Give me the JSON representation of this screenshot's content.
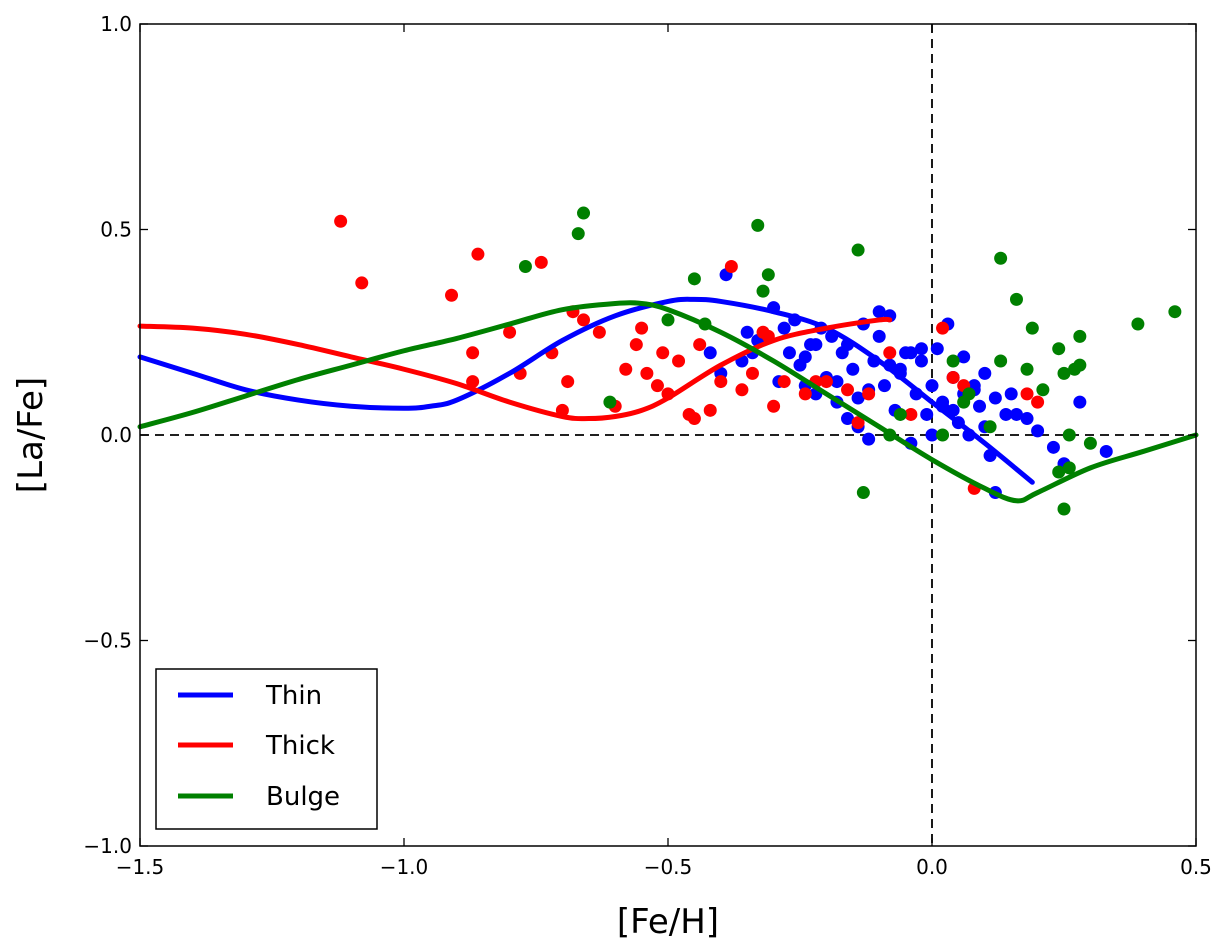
{
  "chart_data": {
    "type": "scatter",
    "title": "",
    "xlabel": "[Fe/H]",
    "ylabel": "[La/Fe]",
    "xlim": [
      -1.5,
      0.5
    ],
    "ylim": [
      -1.0,
      1.0
    ],
    "grid": false,
    "legend_position": "bottom-left",
    "x_ticks": [
      {
        "value": -1.5,
        "label": "−1.5"
      },
      {
        "value": -1.0,
        "label": "−1.0"
      },
      {
        "value": -0.5,
        "label": "−0.5"
      },
      {
        "value": 0.0,
        "label": "0.0"
      },
      {
        "value": 0.5,
        "label": "0.5"
      }
    ],
    "y_ticks": [
      {
        "value": -1.0,
        "label": "−1.0"
      },
      {
        "value": -0.5,
        "label": "−0.5"
      },
      {
        "value": 0.0,
        "label": "0.0"
      },
      {
        "value": 0.5,
        "label": "0.5"
      },
      {
        "value": 1.0,
        "label": "1.0"
      }
    ],
    "reference_lines": [
      {
        "axis": "x",
        "value": 0.0,
        "style": "dashed"
      },
      {
        "axis": "y",
        "value": 0.0,
        "style": "dashed"
      }
    ],
    "models": [
      {
        "name": "Thin",
        "color": "#0000ff",
        "x": [
          -1.5,
          -1.4,
          -1.3,
          -1.2,
          -1.1,
          -1.0,
          -0.95,
          -0.9,
          -0.8,
          -0.7,
          -0.6,
          -0.5,
          -0.45,
          -0.4,
          -0.3,
          -0.2,
          -0.1,
          0.0,
          0.1,
          0.19
        ],
        "y": [
          0.19,
          0.15,
          0.11,
          0.085,
          0.07,
          0.065,
          0.07,
          0.085,
          0.15,
          0.23,
          0.29,
          0.325,
          0.33,
          0.325,
          0.3,
          0.26,
          0.18,
          0.08,
          -0.02,
          -0.115
        ]
      },
      {
        "name": "Thick",
        "color": "#ff0000",
        "x": [
          -1.5,
          -1.4,
          -1.3,
          -1.2,
          -1.1,
          -1.0,
          -0.9,
          -0.8,
          -0.7,
          -0.65,
          -0.6,
          -0.55,
          -0.5,
          -0.4,
          -0.3,
          -0.2,
          -0.1,
          -0.08
        ],
        "y": [
          0.265,
          0.26,
          0.245,
          0.22,
          0.19,
          0.16,
          0.125,
          0.08,
          0.045,
          0.04,
          0.045,
          0.06,
          0.09,
          0.17,
          0.23,
          0.26,
          0.28,
          0.28
        ]
      },
      {
        "name": "Bulge",
        "color": "#008000",
        "x": [
          -1.5,
          -1.4,
          -1.3,
          -1.2,
          -1.1,
          -1.0,
          -0.9,
          -0.8,
          -0.7,
          -0.6,
          -0.55,
          -0.5,
          -0.4,
          -0.3,
          -0.2,
          -0.1,
          0.0,
          0.1,
          0.16,
          0.2,
          0.3,
          0.4,
          0.5
        ],
        "y": [
          0.02,
          0.055,
          0.095,
          0.135,
          0.17,
          0.205,
          0.235,
          0.27,
          0.305,
          0.32,
          0.32,
          0.305,
          0.25,
          0.18,
          0.1,
          0.02,
          -0.06,
          -0.13,
          -0.16,
          -0.14,
          -0.08,
          -0.04,
          0.0
        ]
      }
    ],
    "series": [
      {
        "name": "Thin stars",
        "color": "#0000ff",
        "x": [
          -0.42,
          -0.39,
          -0.35,
          -0.33,
          -0.3,
          -0.28,
          -0.27,
          -0.25,
          -0.24,
          -0.23,
          -0.22,
          -0.21,
          -0.2,
          -0.19,
          -0.18,
          -0.17,
          -0.16,
          -0.15,
          -0.14,
          -0.13,
          -0.12,
          -0.11,
          -0.1,
          -0.09,
          -0.08,
          -0.07,
          -0.06,
          -0.05,
          -0.04,
          -0.03,
          -0.02,
          -0.01,
          0.0,
          0.01,
          0.02,
          0.03,
          0.04,
          0.05,
          0.06,
          0.07,
          0.08,
          0.09,
          0.1,
          0.11,
          0.12,
          0.14,
          0.15,
          0.18,
          0.2,
          0.23,
          0.25,
          0.28,
          0.33,
          -0.4,
          -0.36,
          -0.26,
          -0.22,
          -0.18,
          -0.14,
          -0.1,
          -0.06,
          -0.02,
          0.02,
          0.06,
          0.1,
          -0.34,
          -0.29,
          -0.24,
          -0.16,
          -0.12,
          -0.08,
          -0.04,
          0.0,
          0.04,
          0.08,
          0.12,
          0.16
        ],
        "y": [
          0.2,
          0.39,
          0.25,
          0.23,
          0.31,
          0.26,
          0.2,
          0.17,
          0.12,
          0.22,
          0.1,
          0.26,
          0.14,
          0.24,
          0.08,
          0.2,
          0.04,
          0.16,
          0.02,
          0.27,
          -0.01,
          0.18,
          0.3,
          0.12,
          0.29,
          0.06,
          0.15,
          0.2,
          -0.02,
          0.1,
          0.18,
          0.05,
          0.12,
          0.21,
          0.08,
          0.27,
          0.14,
          0.03,
          0.19,
          0.0,
          0.11,
          0.07,
          0.02,
          -0.05,
          -0.14,
          0.05,
          0.1,
          0.04,
          0.01,
          -0.03,
          -0.07,
          0.08,
          -0.04,
          0.15,
          0.18,
          0.28,
          0.22,
          0.13,
          0.09,
          0.24,
          0.16,
          0.21,
          0.07,
          0.1,
          0.15,
          0.2,
          0.13,
          0.19,
          0.22,
          0.11,
          0.17,
          0.2,
          0.0,
          0.06,
          0.12,
          0.09,
          0.05
        ]
      },
      {
        "name": "Thick stars",
        "color": "#ff0000",
        "x": [
          -1.12,
          -1.08,
          -0.91,
          -0.87,
          -0.86,
          -0.8,
          -0.78,
          -0.74,
          -0.72,
          -0.7,
          -0.69,
          -0.66,
          -0.63,
          -0.6,
          -0.58,
          -0.56,
          -0.54,
          -0.52,
          -0.5,
          -0.48,
          -0.46,
          -0.44,
          -0.42,
          -0.4,
          -0.38,
          -0.36,
          -0.34,
          -0.32,
          -0.3,
          -0.28,
          -0.24,
          -0.2,
          -0.16,
          -0.12,
          -0.08,
          -0.04,
          0.02,
          0.04,
          0.06,
          0.08,
          0.18,
          0.2,
          -0.87,
          -0.68,
          -0.55,
          -0.51,
          -0.45,
          -0.31,
          -0.22,
          -0.14
        ],
        "y": [
          0.52,
          0.37,
          0.34,
          0.13,
          0.44,
          0.25,
          0.15,
          0.42,
          0.2,
          0.06,
          0.13,
          0.28,
          0.25,
          0.07,
          0.16,
          0.22,
          0.15,
          0.12,
          0.1,
          0.18,
          0.05,
          0.22,
          0.06,
          0.13,
          0.41,
          0.11,
          0.15,
          0.25,
          0.07,
          0.13,
          0.1,
          0.13,
          0.11,
          0.1,
          0.2,
          0.05,
          0.26,
          0.14,
          0.12,
          -0.13,
          0.1,
          0.08,
          0.2,
          0.3,
          0.26,
          0.2,
          0.04,
          0.24,
          0.13,
          0.03
        ]
      },
      {
        "name": "Bulge stars",
        "color": "#008000",
        "x": [
          -0.66,
          -0.67,
          -0.77,
          -0.33,
          -0.32,
          -0.31,
          -0.14,
          -0.13,
          -0.5,
          -0.45,
          -0.43,
          -0.61,
          -0.08,
          -0.06,
          0.04,
          0.07,
          0.11,
          0.13,
          0.13,
          0.16,
          0.18,
          0.19,
          0.21,
          0.24,
          0.25,
          0.25,
          0.26,
          0.27,
          0.28,
          0.28,
          0.3,
          0.39,
          0.46,
          0.26,
          0.24,
          0.02,
          0.06
        ],
        "y": [
          0.54,
          0.49,
          0.41,
          0.51,
          0.35,
          0.39,
          0.45,
          -0.14,
          0.28,
          0.38,
          0.27,
          0.08,
          0.0,
          0.05,
          0.18,
          0.1,
          0.02,
          0.43,
          0.18,
          0.33,
          0.16,
          0.26,
          0.11,
          0.21,
          0.15,
          -0.18,
          0.0,
          0.16,
          0.24,
          0.17,
          -0.02,
          0.27,
          0.3,
          -0.08,
          -0.09,
          0.0,
          0.08
        ]
      }
    ],
    "legend": [
      {
        "label": "Thin",
        "color": "#0000ff"
      },
      {
        "label": "Thick",
        "color": "#ff0000"
      },
      {
        "label": "Bulge",
        "color": "#008000"
      }
    ]
  }
}
